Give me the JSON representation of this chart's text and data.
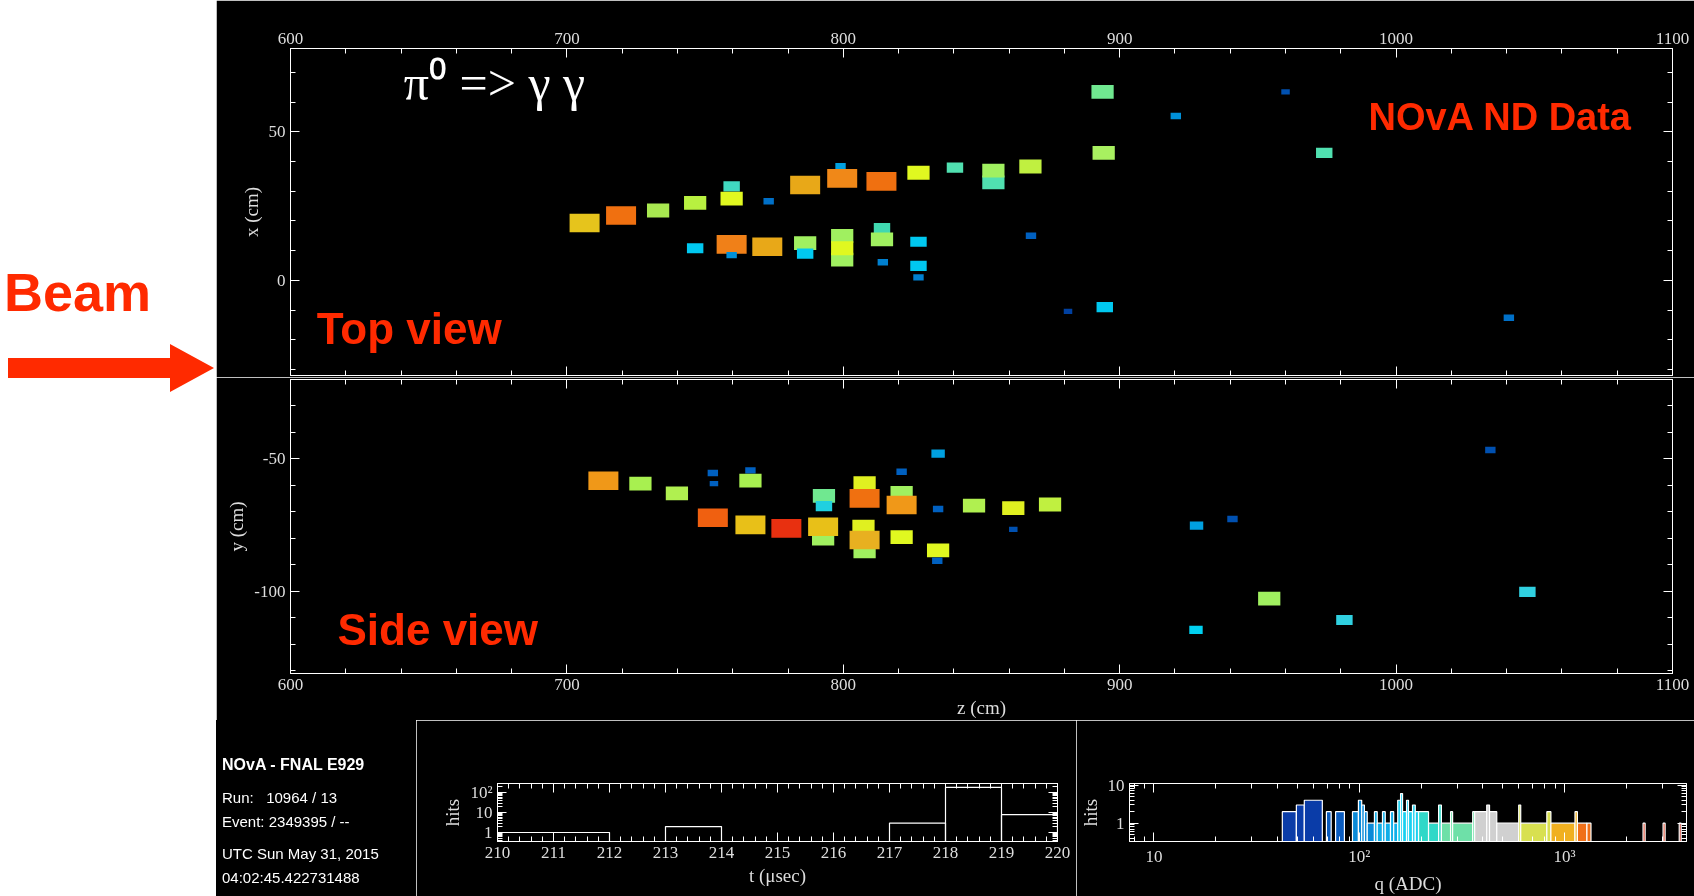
{
  "chart_data": [
    {
      "type": "bubble",
      "ylabel": "x (cm)",
      "marker": "square",
      "tick_labels": "y",
      "xlim": [
        600,
        1100
      ],
      "xticks": [
        600,
        700,
        800,
        900,
        1000,
        1100
      ],
      "x2lim": [
        600,
        1100
      ],
      "x2ticks": [
        600,
        700,
        800,
        900,
        1000,
        1100
      ],
      "ylim": [
        -32,
        78
      ],
      "yticks": [
        0,
        50
      ],
      "annotations": [
        "π⁰ => γ γ",
        "NOvA ND Data",
        "Top view"
      ],
      "x": [
        706.4,
        719.6,
        733,
        746.4,
        759.6,
        759.6,
        773,
        786.2,
        799,
        799.6,
        813.8,
        827.2,
        840.4,
        746.4,
        759.6,
        759.6,
        772.5,
        786.2,
        786.2,
        799.6,
        799.6,
        799.6,
        814,
        814,
        814.3,
        827.2,
        827.2,
        827.2,
        854.3,
        854.3,
        867.7,
        893.8,
        894.2,
        920.3,
        960,
        974,
        867.9,
        881.3,
        894.6,
        1040.8
      ],
      "values": [
        19.3,
        21.8,
        23.5,
        26.1,
        31.6,
        27.5,
        26.6,
        32.1,
        38.4,
        34.3,
        33.3,
        36.2,
        37.9,
        10.8,
        12.1,
        8.5,
        11.3,
        12.5,
        9.0,
        15,
        7.0,
        10.8,
        17.6,
        13.8,
        6.1,
        13,
        4.9,
        1.0,
        33.0,
        36.9,
        38.3,
        63.4,
        42.9,
        55.3,
        63.4,
        42.9,
        15.0,
        -10.4,
        -9.0,
        -12.6
      ],
      "sizes": [
        1,
        1,
        0.55,
        0.55,
        0.3,
        0.55,
        0.12,
        1,
        0.12,
        1,
        1,
        0.55,
        0.3,
        0.3,
        1,
        0.12,
        1,
        0.55,
        0.3,
        0.55,
        0.55,
        0.55,
        0.3,
        0.55,
        0.12,
        0.3,
        0.3,
        0.12,
        0.55,
        0.55,
        0.55,
        0.55,
        0.55,
        0.12,
        0.08,
        0.3,
        0.12,
        0.08,
        0.3,
        0.12
      ],
      "colors": [
        "#e6c41c",
        "#f07010",
        "#a8e850",
        "#b8f040",
        "#40d8c0",
        "#e0f820",
        "#0070c8",
        "#e8a818",
        "#00a0e0",
        "#f08818",
        "#f07010",
        "#e0f820",
        "#50e0b0",
        "#00c8f0",
        "#f08018",
        "#0090d8",
        "#e8a818",
        "#a0f060",
        "#00c8f0",
        "#a0f060",
        "#a0f060",
        "#e0f820",
        "#40d8b0",
        "#a0f060",
        "#0080d0",
        "#00c8f0",
        "#00c8f0",
        "#0080d0",
        "#50e0b0",
        "#a0f060",
        "#c0f040",
        "#70e890",
        "#a8f060",
        "#0090d8",
        "#0050b0",
        "#50e0b0",
        "#0060c0",
        "#0040a0",
        "#00c8f0",
        "#0070c8"
      ]
    },
    {
      "type": "bubble",
      "xlabel": "z (cm)",
      "ylabel": "y (cm)",
      "marker": "square",
      "xlim": [
        600,
        1100
      ],
      "xticks": [
        600,
        700,
        800,
        900,
        1000,
        1100
      ],
      "ylim": [
        -131,
        -20
      ],
      "yticks": [
        -100,
        -50
      ],
      "annotations": [
        "Side view",
        "Beam"
      ],
      "x": [
        713.2,
        726.6,
        739.8,
        752.8,
        753.2,
        752.8,
        766.4,
        766.4,
        766.4,
        779.4,
        793,
        793,
        792.7,
        792.7,
        807.7,
        807.7,
        807.7,
        807.3,
        807.7,
        821.1,
        821.1,
        821.1,
        821.1,
        834.3,
        834.3,
        834.3,
        834,
        847.3,
        861.5,
        874.8,
        861.5,
        927.8,
        940.8,
        1034.1,
        954.1,
        927.6,
        981.3,
        1047.5
      ],
      "values": [
        -58.2,
        -59.3,
        -63,
        -55.3,
        -59.3,
        -72.2,
        -54.3,
        -58.2,
        -74.9,
        -76.2,
        -63.9,
        -67.8,
        -80.1,
        -75.6,
        -59.1,
        -64.9,
        -84.9,
        -75.6,
        -80.6,
        -54.8,
        -62.8,
        -67.4,
        -79.5,
        -48,
        -68.9,
        -84.5,
        -88.4,
        -67.6,
        -68.6,
        -67.2,
        -76.6,
        -75.2,
        -72.7,
        -46.6,
        -102.7,
        -114.5,
        -110.8,
        -100.2
      ],
      "sizes": [
        1,
        0.55,
        0.55,
        0.12,
        0.08,
        1,
        0.12,
        0.55,
        1,
        1,
        0.55,
        0.3,
        0.55,
        1,
        0.55,
        1,
        0.55,
        0.55,
        1,
        0.12,
        0.55,
        1,
        0.55,
        0.2,
        0.12,
        0.55,
        0.12,
        0.55,
        0.55,
        0.55,
        0.08,
        0.2,
        0.12,
        0.12,
        0.55,
        0.2,
        0.3,
        0.3
      ],
      "colors": [
        "#f09818",
        "#a8f050",
        "#b0f050",
        "#0060c0",
        "#0060c0",
        "#f06010",
        "#0060c0",
        "#a8f050",
        "#e8c018",
        "#e83010",
        "#70e890",
        "#20d0e0",
        "#a0f060",
        "#e8c018",
        "#e0f020",
        "#f07010",
        "#a0f060",
        "#e0f020",
        "#e8b020",
        "#0060c0",
        "#a0f060",
        "#f09818",
        "#e0f820",
        "#00a0e0",
        "#0060c0",
        "#e0f820",
        "#0060c0",
        "#b0f050",
        "#e0f020",
        "#c0f040",
        "#0050b0",
        "#00a0e0",
        "#0050b0",
        "#0050b0",
        "#a0f060",
        "#00d0f0",
        "#30d0e0",
        "#30d0e0"
      ]
    },
    {
      "type": "other",
      "title": "NOvA - FNAL E929",
      "annotations": [
        "Run:   10964 / 13",
        "Event: 2349395 / --",
        "UTC Sun May 31, 2015",
        "04:02:45.422731488"
      ]
    },
    {
      "type": "histogram",
      "xlabel": "t (μsec)",
      "ylabel": "hits",
      "log": "y",
      "xlim": [
        210,
        220
      ],
      "xticks": [
        210,
        211,
        212,
        213,
        214,
        215,
        216,
        217,
        218,
        219,
        220
      ],
      "ylim": [
        0.35,
        300
      ],
      "yticks": [
        1,
        10,
        {
          "value": 100,
          "label": "10²"
        }
      ],
      "bins": [
        210,
        212,
        213,
        214,
        217,
        218,
        219,
        220
      ],
      "values": [
        1,
        null,
        2,
        null,
        3,
        190,
        8
      ]
    },
    {
      "type": "histogram",
      "xlabel": "q (ADC)",
      "ylabel": "hits",
      "log": "xy",
      "xlim": [
        7.6,
        3930
      ],
      "xticks": [
        10,
        {
          "value": 100,
          "label": "10²"
        },
        {
          "value": 1000,
          "label": "10³"
        }
      ],
      "ylim": [
        0.33,
        11
      ],
      "yticks": [
        1,
        10
      ],
      "bins": [
        42.2,
        49.4,
        54.0,
        66.1,
        69.2,
        73.0,
        76.7,
        84.7,
        92.7,
        99.1,
        102.8,
        106.0,
        109.4,
        118.6,
        122.4,
        129.8,
        133.9,
        142.0,
        147.2,
        154.0,
        159.0,
        162.6,
        170.0,
        173.8,
        181.8,
        187.5,
        194.5,
        217.6,
        243.6,
        251.4,
        278.6,
        285.1,
        357.1,
        365.2,
        418.0,
        431.3,
        467.8,
        598.4,
        612.0,
        820.4,
        858.6,
        1125,
        1156,
        1286,
        1346,
        2414,
        2471,
        3022,
        3092,
        3622,
        3702
      ],
      "values": [
        2,
        3,
        4,
        null,
        2,
        null,
        2,
        null,
        2,
        4,
        3,
        2,
        1,
        2,
        1,
        2,
        1,
        2,
        1,
        4,
        6,
        2,
        4,
        2,
        3,
        2,
        2,
        1,
        3,
        1,
        2,
        1,
        2,
        2,
        3,
        2,
        1,
        3,
        1,
        2,
        1,
        2,
        1,
        1,
        null,
        1,
        null,
        1,
        null,
        1
      ],
      "colors": [
        "#0a3ca8",
        "#0a3ca8",
        "#0a3ca8",
        "#0a3ca8",
        "#0a5cc0",
        "#0a5cc0",
        "#0a5cc0",
        "#0a5cc0",
        "#0a8ad8",
        "#0a8ad8",
        "#0a8ad8",
        "#0a8ad8",
        "#0a8ad8",
        "#10aee8",
        "#10aee8",
        "#10aee8",
        "#10aee8",
        "#10aee8",
        "#10aee8",
        "#18d0f0",
        "#18d0f0",
        "#18d0f0",
        "#18d0f0",
        "#18d0f0",
        "#18d0f0",
        "#18d0f0",
        "#30d8c8",
        "#30d8c8",
        "#30d8c8",
        "#6ee0a8",
        "#6ee0a8",
        "#6ee0a8",
        "#6ee0a8",
        "#d0d0d0",
        "#d0d0d0",
        "#d0d0d0",
        "#d0d0d0",
        "#d8e050",
        "#d8e050",
        "#d8e050",
        "#f0b020",
        "#f0b020",
        "#f07018",
        "#f07018",
        "#f07018",
        "#e03010",
        "#e03010",
        "#e03010",
        "#c01808",
        "#c01808"
      ]
    }
  ]
}
